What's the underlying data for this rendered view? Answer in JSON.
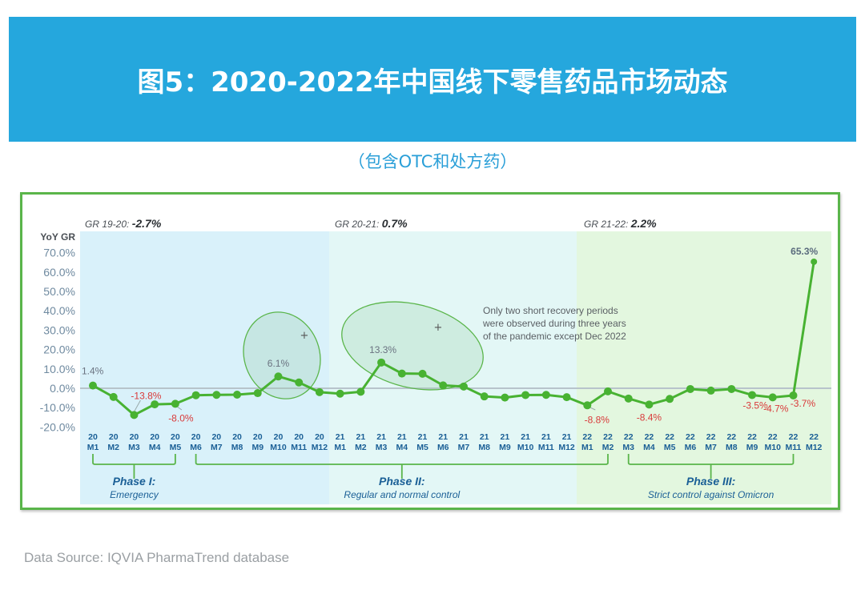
{
  "header": {
    "title": "图5：2020-2022年中国线下零售药品市场动态",
    "subtitle": "（包含OTC和处方药）"
  },
  "footer": {
    "source": "Data Source: IQVIA PharmaTrend database"
  },
  "colors": {
    "banner": "#25a7dd",
    "line": "#48b232",
    "negative_label": "#d93a3a",
    "tick_label": "#1a5f96",
    "phase1_bg": "#d9f1fa",
    "phase2_bg": "#e3f7f6",
    "phase3_bg": "#e3f7df"
  },
  "chart_data": {
    "type": "line",
    "title": "YoY GR",
    "ylabel": "YoY GR",
    "ylim": [
      -20,
      70
    ],
    "yticks": [
      "70.0%",
      "60.0%",
      "50.0%",
      "40.0%",
      "30.0%",
      "20.0%",
      "10.0%",
      "0.0%",
      "-10.0%",
      "-20.0%"
    ],
    "ytick_values": [
      70,
      60,
      50,
      40,
      30,
      20,
      10,
      0,
      -10,
      -20
    ],
    "x_years": [
      "20",
      "20",
      "20",
      "20",
      "20",
      "20",
      "20",
      "20",
      "20",
      "20",
      "20",
      "20",
      "21",
      "21",
      "21",
      "21",
      "21",
      "21",
      "21",
      "21",
      "21",
      "21",
      "21",
      "21",
      "22",
      "22",
      "22",
      "22",
      "22",
      "22",
      "22",
      "22",
      "22",
      "22",
      "22",
      "22"
    ],
    "x_months": [
      "M1",
      "M2",
      "M3",
      "M4",
      "M5",
      "M6",
      "M7",
      "M8",
      "M9",
      "M10",
      "M11",
      "M12",
      "M1",
      "M2",
      "M3",
      "M4",
      "M5",
      "M6",
      "M7",
      "M8",
      "M9",
      "M10",
      "M11",
      "M12",
      "M1",
      "M2",
      "M3",
      "M4",
      "M5",
      "M6",
      "M7",
      "M8",
      "M9",
      "M10",
      "M11",
      "M12"
    ],
    "series": [
      {
        "name": "YoY GR",
        "values": [
          1.4,
          -4.5,
          -13.8,
          -8.3,
          -8.0,
          -3.6,
          -3.4,
          -3.3,
          -2.5,
          6.1,
          3.0,
          -2.0,
          -2.8,
          -1.8,
          13.3,
          7.6,
          7.5,
          1.5,
          0.9,
          -4.2,
          -4.8,
          -3.5,
          -3.4,
          -4.6,
          -8.8,
          -1.6,
          -5.3,
          -8.4,
          -5.5,
          -0.4,
          -1.2,
          -0.4,
          -3.5,
          -4.7,
          -3.7,
          65.3
        ]
      }
    ],
    "data_labels": [
      {
        "index": 0,
        "text": "1.4%",
        "tone": "neutral"
      },
      {
        "index": 2,
        "text": "-13.8%",
        "tone": "negative"
      },
      {
        "index": 4,
        "text": "-8.0%",
        "tone": "negative"
      },
      {
        "index": 9,
        "text": "6.1%",
        "tone": "neutral"
      },
      {
        "index": 14,
        "text": "13.3%",
        "tone": "neutral"
      },
      {
        "index": 24,
        "text": "-8.8%",
        "tone": "negative"
      },
      {
        "index": 27,
        "text": "-8.4%",
        "tone": "negative"
      },
      {
        "index": 32,
        "text": "-3.5%",
        "tone": "negative"
      },
      {
        "index": 33,
        "text": "-4.7%",
        "tone": "negative"
      },
      {
        "index": 34,
        "text": "-3.7%",
        "tone": "negative"
      },
      {
        "index": 35,
        "text": "65.3%",
        "tone": "bold"
      }
    ],
    "growth_rates": [
      {
        "label": "GR 19-20:",
        "value": "-2.7%"
      },
      {
        "label": "GR 20-21:",
        "value": "0.7%"
      },
      {
        "label": "GR 21-22:",
        "value": "2.2%"
      }
    ],
    "phases": [
      {
        "title": "Phase I:",
        "desc": "Emergency",
        "start_index": 0,
        "end_index": 4
      },
      {
        "title": "Phase II:",
        "desc": "Regular and normal control",
        "start_index": 5,
        "end_index": 25
      },
      {
        "title": "Phase III:",
        "desc": "Strict control against Omicron",
        "start_index": 26,
        "end_index": 34
      }
    ],
    "annotation": [
      "Only two short recovery periods",
      "were observed during three years",
      "of the pandemic except Dec 2022"
    ],
    "highlight_indices": [
      9,
      14
    ],
    "grid": false,
    "legend": "none"
  }
}
